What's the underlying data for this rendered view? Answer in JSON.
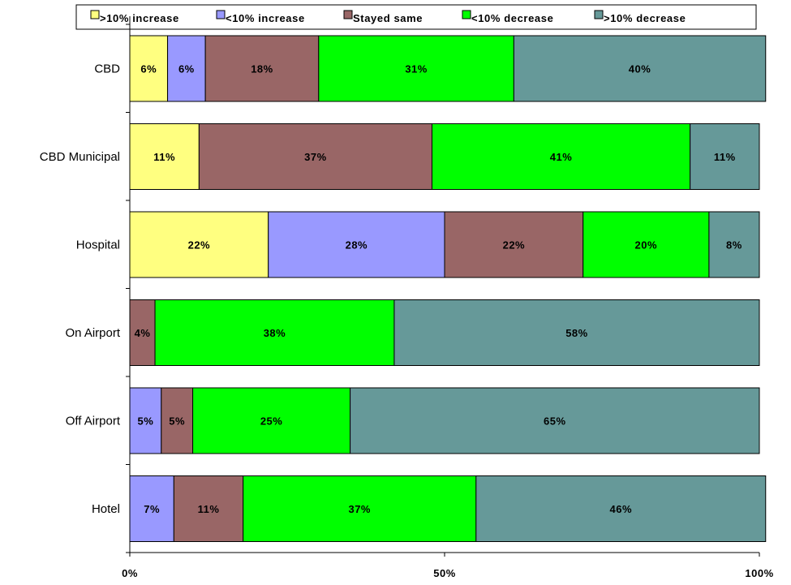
{
  "chart_data": {
    "type": "bar",
    "orientation": "horizontal",
    "stacked": "percent",
    "categories": [
      "CBD",
      "CBD Municipal",
      "Hospital",
      "On Airport",
      "Off Airport",
      "Hotel"
    ],
    "series": [
      {
        "name": ">10% increase",
        "color": "#FFFF80",
        "values": [
          6,
          11,
          22,
          0,
          0,
          0
        ],
        "labels": [
          "6%",
          "11%",
          "22%",
          "",
          "",
          ""
        ]
      },
      {
        "name": "<10% increase",
        "color": "#9999FF",
        "values": [
          6,
          0,
          28,
          0,
          5,
          7
        ],
        "labels": [
          "6%",
          "",
          "28%",
          "",
          "5%",
          "7%"
        ]
      },
      {
        "name": "Stayed same",
        "color": "#996666",
        "values": [
          18,
          37,
          22,
          4,
          5,
          11
        ],
        "labels": [
          "18%",
          "37%",
          "22%",
          "4%",
          "5%",
          "11%"
        ]
      },
      {
        "name": "<10% decrease",
        "color": "#00FF00",
        "values": [
          31,
          41,
          20,
          38,
          25,
          37
        ],
        "labels": [
          "31%",
          "41%",
          "20%",
          "38%",
          "25%",
          "37%"
        ]
      },
      {
        "name": ">10% decrease",
        "color": "#669999",
        "values": [
          40,
          11,
          8,
          58,
          65,
          46
        ],
        "labels": [
          "40%",
          "11%",
          "8%",
          "58%",
          "65%",
          "46%"
        ]
      }
    ],
    "xticks": [
      "0%",
      "50%",
      "100%"
    ],
    "xlim": [
      0,
      100
    ],
    "legend": "top",
    "grid": false
  }
}
